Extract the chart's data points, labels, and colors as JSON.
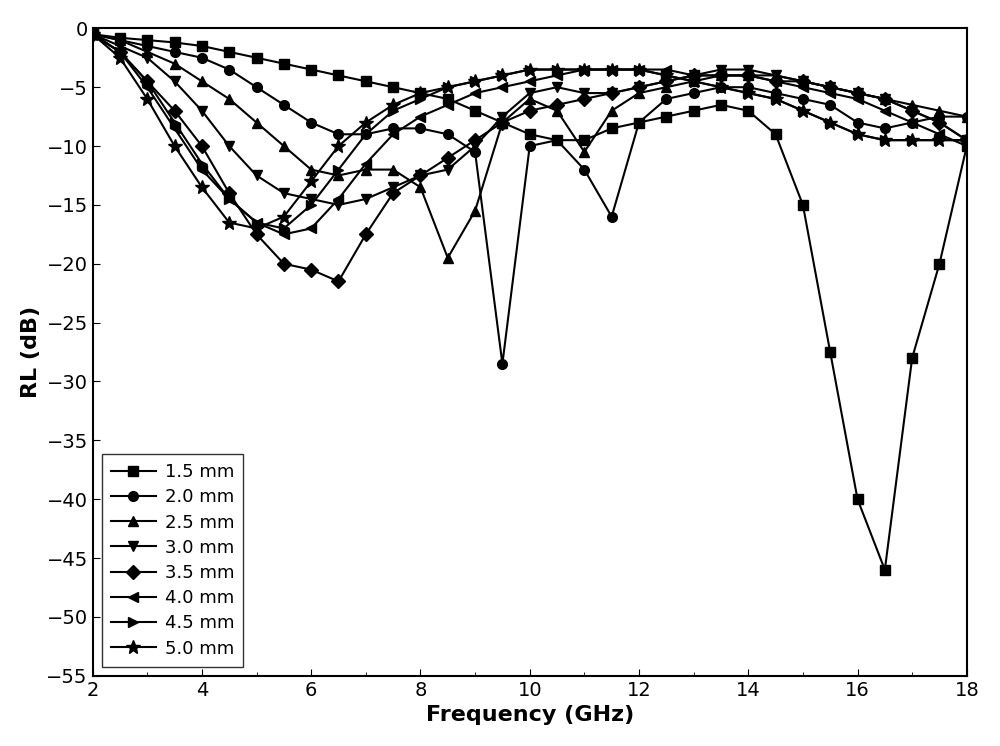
{
  "title": "",
  "xlabel": "Frequency (GHz)",
  "ylabel": "RL (dB)",
  "xlim": [
    2,
    18
  ],
  "ylim": [
    -55,
    0
  ],
  "xticks": [
    2,
    4,
    6,
    8,
    10,
    12,
    14,
    16,
    18
  ],
  "yticks": [
    0,
    -5,
    -10,
    -15,
    -20,
    -25,
    -30,
    -35,
    -40,
    -45,
    -50,
    -55
  ],
  "series": [
    {
      "label": "1.5 mm",
      "marker": "s",
      "freq": [
        2,
        2.5,
        3,
        3.5,
        4,
        4.5,
        5,
        5.5,
        6,
        6.5,
        7,
        7.5,
        8,
        8.5,
        9,
        9.5,
        10,
        10.5,
        11,
        11.5,
        12,
        12.5,
        13,
        13.5,
        14,
        14.5,
        15,
        15.5,
        16,
        16.5,
        17,
        17.5,
        18
      ],
      "rl": [
        -0.5,
        -0.8,
        -1.0,
        -1.2,
        -1.5,
        -2.0,
        -2.5,
        -3.0,
        -3.5,
        -4.0,
        -4.5,
        -5.0,
        -5.5,
        -6.0,
        -7.0,
        -8.0,
        -9.0,
        -9.5,
        -9.5,
        -8.5,
        -8.0,
        -7.5,
        -7.0,
        -6.5,
        -7.0,
        -9.0,
        -15.0,
        -27.5,
        -40.0,
        -46.0,
        -28.0,
        -20.0,
        -10.0
      ]
    },
    {
      "label": "2.0 mm",
      "marker": "o",
      "freq": [
        2,
        2.5,
        3,
        3.5,
        4,
        4.5,
        5,
        5.5,
        6,
        6.5,
        7,
        7.5,
        8,
        8.5,
        9,
        9.5,
        10,
        10.5,
        11,
        11.5,
        12,
        12.5,
        13,
        13.5,
        14,
        14.5,
        15,
        15.5,
        16,
        16.5,
        17,
        17.5,
        18
      ],
      "rl": [
        -0.5,
        -1.0,
        -1.5,
        -2.0,
        -2.5,
        -3.5,
        -5.0,
        -6.5,
        -8.0,
        -9.0,
        -9.0,
        -8.5,
        -8.5,
        -9.0,
        -10.5,
        -28.5,
        -10.0,
        -9.5,
        -12.0,
        -16.0,
        -8.0,
        -6.0,
        -5.5,
        -5.0,
        -5.0,
        -5.5,
        -6.0,
        -6.5,
        -8.0,
        -8.5,
        -8.0,
        -7.5,
        -7.5
      ]
    },
    {
      "label": "2.5 mm",
      "marker": "^",
      "freq": [
        2,
        2.5,
        3,
        3.5,
        4,
        4.5,
        5,
        5.5,
        6,
        6.5,
        7,
        7.5,
        8,
        8.5,
        9,
        9.5,
        10,
        10.5,
        11,
        11.5,
        12,
        12.5,
        13,
        13.5,
        14,
        14.5,
        15,
        15.5,
        16,
        16.5,
        17,
        17.5,
        18
      ],
      "rl": [
        -0.5,
        -1.0,
        -2.0,
        -3.0,
        -4.5,
        -6.0,
        -8.0,
        -10.0,
        -12.0,
        -12.5,
        -12.0,
        -12.0,
        -13.5,
        -19.5,
        -15.5,
        -8.0,
        -6.0,
        -7.0,
        -10.5,
        -7.0,
        -5.5,
        -5.0,
        -4.5,
        -4.0,
        -4.0,
        -4.0,
        -4.5,
        -5.0,
        -5.5,
        -6.0,
        -6.5,
        -7.0,
        -7.5
      ]
    },
    {
      "label": "3.0 mm",
      "marker": "v",
      "freq": [
        2,
        2.5,
        3,
        3.5,
        4,
        4.5,
        5,
        5.5,
        6,
        6.5,
        7,
        7.5,
        8,
        8.5,
        9,
        9.5,
        10,
        10.5,
        11,
        11.5,
        12,
        12.5,
        13,
        13.5,
        14,
        14.5,
        15,
        15.5,
        16,
        16.5,
        17,
        17.5,
        18
      ],
      "rl": [
        -0.5,
        -1.5,
        -2.5,
        -4.5,
        -7.0,
        -10.0,
        -12.5,
        -14.0,
        -14.5,
        -15.0,
        -14.5,
        -13.5,
        -12.5,
        -12.0,
        -10.0,
        -7.5,
        -5.5,
        -5.0,
        -5.5,
        -5.5,
        -5.0,
        -4.5,
        -4.0,
        -3.5,
        -3.5,
        -4.0,
        -4.5,
        -5.0,
        -5.5,
        -6.0,
        -7.0,
        -8.0,
        -9.5
      ]
    },
    {
      "label": "3.5 mm",
      "marker": "D",
      "freq": [
        2,
        2.5,
        3,
        3.5,
        4,
        4.5,
        5,
        5.5,
        6,
        6.5,
        7,
        7.5,
        8,
        8.5,
        9,
        9.5,
        10,
        10.5,
        11,
        11.5,
        12,
        12.5,
        13,
        13.5,
        14,
        14.5,
        15,
        15.5,
        16,
        16.5,
        17,
        17.5,
        18
      ],
      "rl": [
        -0.5,
        -2.0,
        -4.5,
        -7.0,
        -10.0,
        -14.0,
        -17.5,
        -20.0,
        -20.5,
        -21.5,
        -17.5,
        -14.0,
        -12.5,
        -11.0,
        -9.5,
        -8.0,
        -7.0,
        -6.5,
        -6.0,
        -5.5,
        -5.0,
        -4.5,
        -4.0,
        -4.0,
        -4.0,
        -4.5,
        -4.5,
        -5.0,
        -5.5,
        -6.0,
        -7.0,
        -8.0,
        -9.5
      ]
    },
    {
      "label": "4.0 mm",
      "marker": "<",
      "freq": [
        2,
        2.5,
        3,
        3.5,
        4,
        4.5,
        5,
        5.5,
        6,
        6.5,
        7,
        7.5,
        8,
        8.5,
        9,
        9.5,
        10,
        10.5,
        11,
        11.5,
        12,
        12.5,
        13,
        13.5,
        14,
        14.5,
        15,
        15.5,
        16,
        16.5,
        17,
        17.5,
        18
      ],
      "rl": [
        -0.5,
        -2.0,
        -5.0,
        -8.5,
        -12.0,
        -14.5,
        -16.5,
        -17.5,
        -17.0,
        -14.5,
        -11.5,
        -9.0,
        -7.5,
        -6.5,
        -5.5,
        -5.0,
        -4.5,
        -4.0,
        -3.5,
        -3.5,
        -3.5,
        -3.5,
        -4.0,
        -4.0,
        -4.0,
        -4.5,
        -5.0,
        -5.5,
        -6.0,
        -7.0,
        -8.0,
        -9.0,
        -10.0
      ]
    },
    {
      "label": "4.5 mm",
      "marker": ">",
      "freq": [
        2,
        2.5,
        3,
        3.5,
        4,
        4.5,
        5,
        5.5,
        6,
        6.5,
        7,
        7.5,
        8,
        8.5,
        9,
        9.5,
        10,
        10.5,
        11,
        11.5,
        12,
        12.5,
        13,
        13.5,
        14,
        14.5,
        15,
        15.5,
        16,
        16.5,
        17,
        17.5,
        18
      ],
      "rl": [
        -0.5,
        -2.0,
        -4.5,
        -8.0,
        -11.5,
        -14.5,
        -16.5,
        -17.0,
        -15.0,
        -12.0,
        -9.0,
        -7.0,
        -6.0,
        -5.0,
        -4.5,
        -4.0,
        -3.5,
        -3.5,
        -3.5,
        -3.5,
        -3.5,
        -4.0,
        -4.5,
        -5.0,
        -5.5,
        -6.0,
        -7.0,
        -8.0,
        -9.0,
        -9.5,
        -9.5,
        -9.5,
        -9.5
      ]
    },
    {
      "label": "5.0 mm",
      "marker": "*",
      "freq": [
        2,
        2.5,
        3,
        3.5,
        4,
        4.5,
        5,
        5.5,
        6,
        6.5,
        7,
        7.5,
        8,
        8.5,
        9,
        9.5,
        10,
        10.5,
        11,
        11.5,
        12,
        12.5,
        13,
        13.5,
        14,
        14.5,
        15,
        15.5,
        16,
        16.5,
        17,
        17.5,
        18
      ],
      "rl": [
        -0.5,
        -2.5,
        -6.0,
        -10.0,
        -13.5,
        -16.5,
        -17.0,
        -16.0,
        -13.0,
        -10.0,
        -8.0,
        -6.5,
        -5.5,
        -5.0,
        -4.5,
        -4.0,
        -3.5,
        -3.5,
        -3.5,
        -3.5,
        -3.5,
        -4.0,
        -4.5,
        -5.0,
        -5.5,
        -6.0,
        -7.0,
        -8.0,
        -9.0,
        -9.5,
        -9.5,
        -9.5,
        -9.5
      ]
    }
  ],
  "line_color": "#000000",
  "marker_size": 7,
  "line_width": 1.5,
  "background_color": "#ffffff",
  "legend_fontsize": 13,
  "axis_label_fontsize": 16,
  "tick_fontsize": 14
}
